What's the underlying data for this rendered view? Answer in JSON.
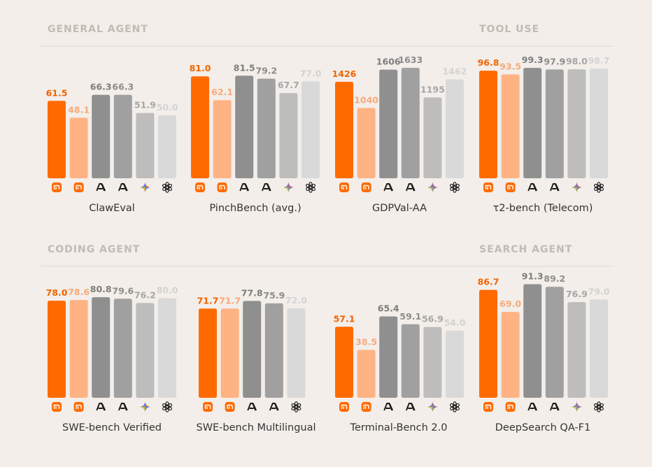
{
  "sections": [
    {
      "title": "GENERAL AGENT"
    },
    {
      "title": "TOOL USE"
    },
    {
      "title": "CODING AGENT"
    },
    {
      "title": "SEARCH AGENT"
    }
  ],
  "colors": {
    "series": [
      "#ff6a00",
      "#ffb385",
      "#8f8f8f",
      "#a0a0a0",
      "#bdbdbd",
      "#d9d9d9"
    ],
    "labels": [
      "#f06400",
      "#f7a97a",
      "#7d7d7d",
      "#8c8c8c",
      "#a6a6a6",
      "#d3d3d3"
    ],
    "xiaomi_badge": "#ff6a00",
    "divider": "#e3d8cf"
  },
  "model_icons": [
    "xiaomi-icon",
    "xiaomi-icon",
    "anthropic-icon",
    "anthropic-icon",
    "gemini-icon",
    "openai-icon"
  ],
  "chart_data": [
    {
      "type": "bar",
      "title": "ClawEval",
      "section": "GENERAL AGENT",
      "values": [
        61.5,
        48.1,
        66.3,
        66.3,
        51.9,
        50.0
      ],
      "labels": [
        "61.5",
        "48.1",
        "66.3",
        "66.3",
        "51.9",
        "50.0"
      ],
      "ylim": [
        0,
        100
      ]
    },
    {
      "type": "bar",
      "title": "PinchBench (avg.)",
      "section": "GENERAL AGENT",
      "values": [
        81.0,
        62.1,
        81.5,
        79.2,
        67.7,
        77.0
      ],
      "labels": [
        "81.0",
        "62.1",
        "81.5",
        "79.2",
        "67.7",
        "77.0"
      ],
      "ylim": [
        0,
        100
      ]
    },
    {
      "type": "bar",
      "title": "GDPVal-AA",
      "section": "GENERAL AGENT",
      "values": [
        1426,
        1040,
        1606,
        1633,
        1195,
        1462
      ],
      "labels": [
        "1426",
        "1040",
        "1606",
        "1633",
        "1195",
        "1462"
      ],
      "ylim": [
        0,
        1860
      ]
    },
    {
      "type": "bar",
      "title": "τ2-bench (Telecom)",
      "section": "TOOL USE",
      "values": [
        96.8,
        93.5,
        99.3,
        97.9,
        98.0,
        98.7
      ],
      "labels": [
        "96.8",
        "93.5",
        "99.3",
        "97.9",
        "98.0",
        "98.7"
      ],
      "ylim": [
        0,
        100
      ]
    },
    {
      "type": "bar",
      "title": "SWE-bench Verified",
      "section": "CODING AGENT",
      "values": [
        78.0,
        78.6,
        80.8,
        79.6,
        76.2,
        80.0
      ],
      "labels": [
        "78.0",
        "78.6",
        "80.8",
        "79.6",
        "76.2",
        "80.0"
      ],
      "ylim": [
        0,
        100
      ]
    },
    {
      "type": "bar",
      "title": "SWE-bench Multilingual",
      "section": "CODING AGENT",
      "values": [
        71.7,
        71.7,
        77.8,
        75.9,
        72.0
      ],
      "labels": [
        "71.7",
        "71.7",
        "77.8",
        "75.9",
        "72.0"
      ],
      "model_indices": [
        0,
        1,
        2,
        3,
        5
      ],
      "ylim": [
        0,
        100
      ]
    },
    {
      "type": "bar",
      "title": "Terminal-Bench 2.0",
      "section": "CODING AGENT",
      "values": [
        57.1,
        38.5,
        65.4,
        59.1,
        56.9,
        54.0
      ],
      "labels": [
        "57.1",
        "38.5",
        "65.4",
        "59.1",
        "56.9",
        "54.0"
      ],
      "ylim": [
        0,
        100
      ]
    },
    {
      "type": "bar",
      "title": "DeepSearch QA-F1",
      "section": "SEARCH AGENT",
      "values": [
        86.7,
        69.0,
        91.3,
        89.2,
        76.9,
        79.0
      ],
      "labels": [
        "86.7",
        "69.0",
        "91.3",
        "89.2",
        "76.9",
        "79.0"
      ],
      "ylim": [
        0,
        100
      ]
    }
  ]
}
